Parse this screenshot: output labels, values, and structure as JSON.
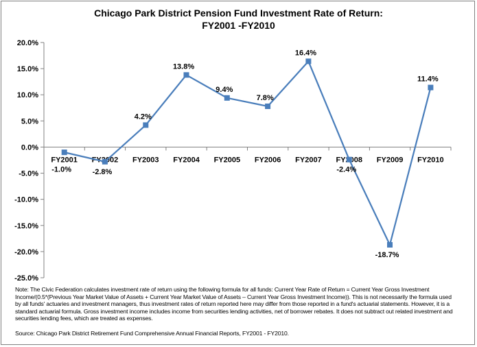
{
  "chart_data": {
    "type": "line",
    "title_line1": "Chicago Park District Pension Fund Investment Rate of Return:",
    "title_line2": "FY2001 -FY2010",
    "xlabel": "",
    "ylabel": "",
    "categories": [
      "FY2001",
      "FY2002",
      "FY2003",
      "FY2004",
      "FY2005",
      "FY2006",
      "FY2007",
      "FY2008",
      "FY2009",
      "FY2010"
    ],
    "series": [
      {
        "values": [
          -1.0,
          -2.8,
          4.2,
          13.8,
          9.4,
          7.8,
          16.4,
          -2.4,
          -18.7,
          11.4
        ],
        "labels": [
          "-1.0%",
          "-2.8%",
          "4.2%",
          "13.8%",
          "9.4%",
          "7.8%",
          "16.4%",
          "-2.4%",
          "-18.7%",
          "11.4%"
        ],
        "color": "#4a7ebb"
      }
    ],
    "ylim": [
      -25,
      20
    ],
    "yticks": [
      20,
      15,
      10,
      5,
      0,
      -5,
      -10,
      -15,
      -20,
      -25
    ],
    "ytick_labels": [
      "20.0%",
      "15.0%",
      "10.0%",
      "5.0%",
      "0.0%",
      "-5.0%",
      "-10.0%",
      "-15.0%",
      "-20.0%",
      "-25.0%"
    ],
    "grid": false,
    "legend": "none"
  },
  "note": "Note: The Civic Federation calculates investment rate of return using the following formula for all funds: Current Year Rate of Return = Current Year Gross Investment Income/(0.5*(Previous Year Market Value of Assets + Current Year Market Value of Assets – Current Year Gross Investment Income)). This is not necessarily the formula used by all funds' actuaries and investment managers, thus investment rates of return reported here may differ from those reported in a fund's actuarial statements. However, it is a standard actuarial formula. Gross investment income includes income from securities lending activities, net of borrower rebates. It does not subtract out related investment and securities lending fees, which are treated as expenses.",
  "source": "Source: Chicago Park District Retirement Fund Comprehensive Annual Financial Reports, FY2001 - FY2010."
}
